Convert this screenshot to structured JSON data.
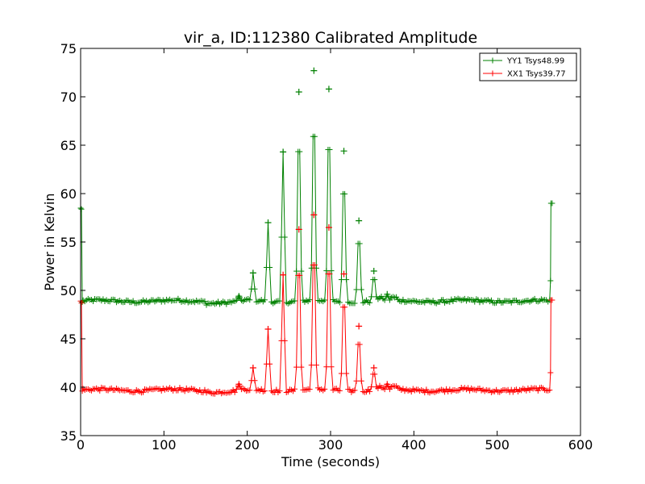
{
  "chart_data": {
    "type": "line",
    "title": "vir_a, ID:112380 Calibrated Amplitude",
    "xlabel": "Time (seconds)",
    "ylabel": "Power in Kelvin",
    "xlim": [
      0,
      600
    ],
    "ylim": [
      35,
      75
    ],
    "xticks": [
      0,
      100,
      200,
      300,
      400,
      500,
      600
    ],
    "yticks": [
      35,
      40,
      45,
      50,
      55,
      60,
      65,
      70,
      75
    ],
    "grid": false,
    "legend_position": "top-right",
    "marker": "+",
    "series": [
      {
        "name": "YY1 Tsys48.99",
        "color": "#008000",
        "baseline": 48.9,
        "start": [
          [
            0,
            58.5
          ],
          [
            1,
            58.4
          ],
          [
            2,
            48.8
          ]
        ],
        "end": [
          [
            563,
            49.0
          ],
          [
            564,
            51.0
          ],
          [
            564.5,
            59.0
          ],
          [
            566,
            59.0
          ]
        ],
        "peaks": [
          {
            "x": 190,
            "y": 49.4
          },
          {
            "x": 207,
            "y": 51.8
          },
          {
            "x": 225,
            "y": 57.0
          },
          {
            "x": 243,
            "y": 64.3
          },
          {
            "x": 262,
            "y": 70.5
          },
          {
            "x": 280,
            "y": 72.7
          },
          {
            "x": 298,
            "y": 70.8
          },
          {
            "x": 316,
            "y": 64.4
          },
          {
            "x": 334,
            "y": 57.2
          },
          {
            "x": 352,
            "y": 52.0
          },
          {
            "x": 368,
            "y": 49.6
          }
        ]
      },
      {
        "name": "XX1 Tsys39.77",
        "color": "#ff0000",
        "baseline": 39.7,
        "start": [
          [
            0,
            48.9
          ],
          [
            1,
            48.7
          ],
          [
            2,
            39.6
          ]
        ],
        "end": [
          [
            563,
            39.7
          ],
          [
            564,
            41.5
          ],
          [
            564.5,
            49.0
          ],
          [
            566,
            49.0
          ]
        ],
        "peaks": [
          {
            "x": 190,
            "y": 40.3
          },
          {
            "x": 207,
            "y": 42.0
          },
          {
            "x": 225,
            "y": 46.0
          },
          {
            "x": 243,
            "y": 51.6
          },
          {
            "x": 262,
            "y": 56.3
          },
          {
            "x": 280,
            "y": 57.8
          },
          {
            "x": 298,
            "y": 56.5
          },
          {
            "x": 316,
            "y": 51.7
          },
          {
            "x": 334,
            "y": 46.3
          },
          {
            "x": 352,
            "y": 42.0
          },
          {
            "x": 368,
            "y": 40.3
          }
        ]
      }
    ]
  }
}
